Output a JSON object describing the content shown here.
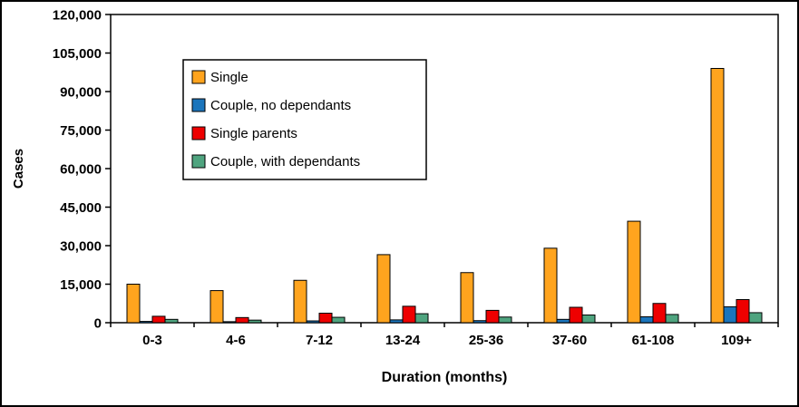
{
  "chart_data": {
    "type": "bar",
    "title": "",
    "xlabel": "Duration (months)",
    "ylabel": "Cases",
    "categories": [
      "0-3",
      "4-6",
      "7-12",
      "13-24",
      "25-36",
      "37-60",
      "61-108",
      "109+"
    ],
    "series": [
      {
        "name": "Single",
        "color": "#FFA41E",
        "values": [
          15000,
          12500,
          16500,
          26500,
          19500,
          29000,
          39500,
          99000
        ]
      },
      {
        "name": "Couple, no dependants",
        "color": "#1B75BC",
        "values": [
          500,
          400,
          700,
          1100,
          800,
          1300,
          2300,
          6200
        ]
      },
      {
        "name": "Single parents",
        "color": "#EE0000",
        "values": [
          2500,
          2000,
          3700,
          6400,
          4800,
          6000,
          7500,
          9000
        ]
      },
      {
        "name": "Couple, with dependants",
        "color": "#4FA47F",
        "values": [
          1300,
          1000,
          2100,
          3500,
          2200,
          3000,
          3200,
          3900
        ]
      }
    ],
    "ylim": [
      0,
      120000
    ],
    "ytick_step": 15000,
    "ytick_labels": [
      "0",
      "15,000",
      "30,000",
      "45,000",
      "60,000",
      "75,000",
      "90,000",
      "105,000",
      "120,000"
    ],
    "grid": false,
    "legend_position": "upper-left-inside",
    "bar_outline": "#000000",
    "axis_color": "#000000"
  }
}
